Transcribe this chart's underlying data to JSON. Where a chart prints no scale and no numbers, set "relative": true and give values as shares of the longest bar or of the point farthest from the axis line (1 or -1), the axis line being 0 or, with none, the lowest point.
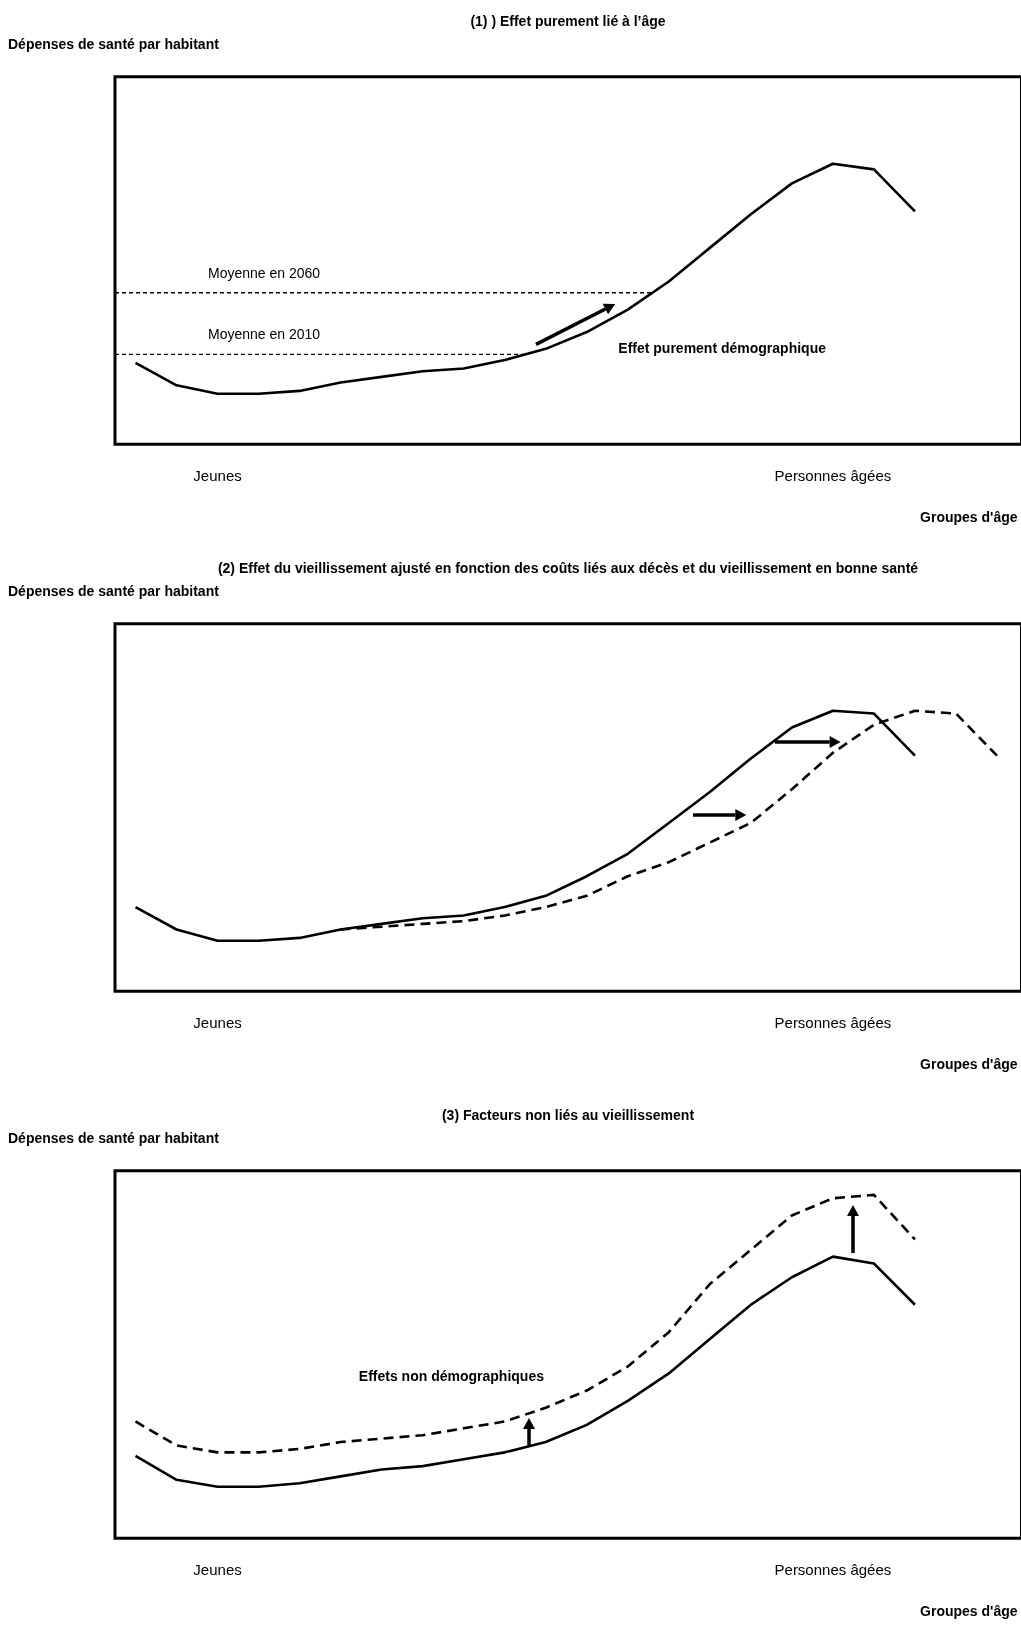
{
  "chart_data": [
    {
      "type": "line",
      "title": "(1) ) Effet purement lié à l’âge",
      "ylabel": "Dépenses de santé par habitant",
      "xlabel": "Groupes d'âge",
      "relative": true,
      "marker": "none",
      "categories": [
        null,
        null,
        "Jeunes",
        null,
        null,
        null,
        null,
        null,
        null,
        null,
        null,
        null,
        null,
        null,
        null,
        null,
        null,
        "Personnes âgées",
        null,
        null,
        null,
        null
      ],
      "series": [
        {
          "color": "#000000",
          "line_style": "solid",
          "values": [
            0.29,
            0.21,
            0.18,
            0.18,
            0.19,
            0.22,
            0.24,
            0.26,
            0.27,
            0.3,
            0.34,
            0.4,
            0.48,
            0.58,
            0.7,
            0.82,
            0.93,
            1,
            0.98,
            0.83,
            null,
            null
          ]
        }
      ],
      "ref_lines": [
        {
          "axis": "y",
          "value": 0.54,
          "label": "Moyenne en 2060",
          "line_style": "dashed",
          "color": "#000000"
        },
        {
          "axis": "y",
          "value": 0.32,
          "label": "Moyenne en 2010",
          "line_style": "dashed",
          "color": "#000000"
        }
      ],
      "annotations": [
        "Effet purement démographique"
      ]
    },
    {
      "type": "line",
      "title": "(2) Effet du vieillissement ajusté en fonction des coûts liés aux décès et du vieillissement en bonne santé",
      "ylabel": "Dépenses de santé par habitant",
      "xlabel": "Groupes d'âge",
      "relative": true,
      "marker": "none",
      "categories": [
        null,
        null,
        "Jeunes",
        null,
        null,
        null,
        null,
        null,
        null,
        null,
        null,
        null,
        null,
        null,
        null,
        null,
        null,
        "Personnes âgées",
        null,
        null,
        null,
        null
      ],
      "series": [
        {
          "color": "#000000",
          "line_style": "solid",
          "values": [
            0.3,
            0.22,
            0.18,
            0.18,
            0.19,
            0.22,
            0.24,
            0.26,
            0.27,
            0.3,
            0.34,
            0.41,
            0.49,
            0.6,
            0.71,
            0.83,
            0.94,
            1,
            0.99,
            0.84,
            null,
            null
          ]
        },
        {
          "color": "#000000",
          "line_style": "dashed",
          "values": [
            null,
            null,
            null,
            null,
            null,
            0.22,
            0.23,
            0.24,
            0.25,
            0.27,
            0.3,
            0.34,
            0.41,
            0.46,
            0.53,
            0.6,
            0.72,
            0.85,
            0.95,
            1,
            0.99,
            0.84
          ]
        }
      ]
    },
    {
      "type": "line",
      "title": "(3) Facteurs non liés au vieillissement",
      "ylabel": "Dépenses de santé par habitant",
      "xlabel": "Groupes d'âge",
      "relative": true,
      "marker": "none",
      "categories": [
        null,
        null,
        "Jeunes",
        null,
        null,
        null,
        null,
        null,
        null,
        null,
        null,
        null,
        null,
        null,
        null,
        null,
        null,
        "Personnes âgées",
        null,
        null,
        null,
        null
      ],
      "series": [
        {
          "color": "#000000",
          "line_style": "solid",
          "values": [
            0.24,
            0.17,
            0.15,
            0.15,
            0.16,
            0.18,
            0.2,
            0.21,
            0.23,
            0.25,
            0.28,
            0.33,
            0.4,
            0.48,
            0.58,
            0.68,
            0.76,
            0.82,
            0.8,
            0.68,
            null,
            null
          ]
        },
        {
          "color": "#000000",
          "line_style": "dashed",
          "values": [
            0.34,
            0.27,
            0.25,
            0.25,
            0.26,
            0.28,
            0.29,
            0.3,
            0.32,
            0.34,
            0.38,
            0.43,
            0.5,
            0.6,
            0.74,
            0.84,
            0.94,
            0.99,
            1,
            0.87,
            null,
            null
          ]
        }
      ],
      "annotations": [
        "Effets non démographiques"
      ]
    }
  ]
}
